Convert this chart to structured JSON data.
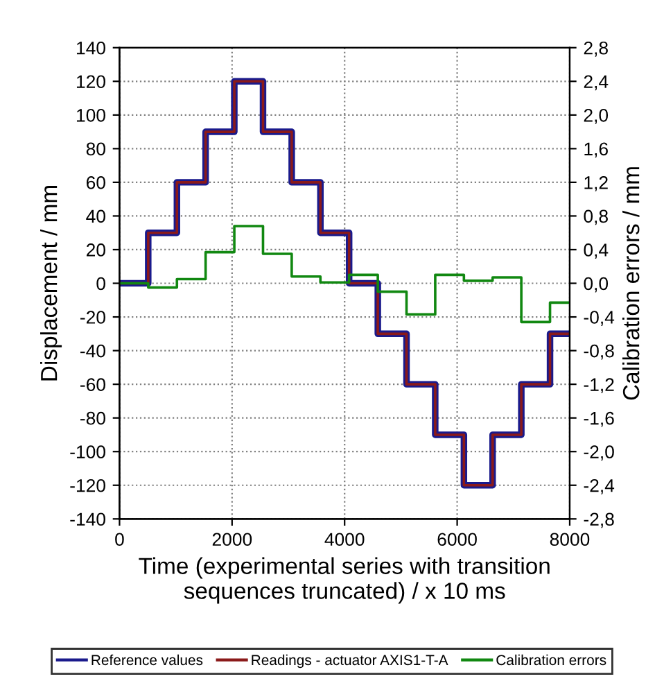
{
  "chart_data": {
    "type": "step",
    "xlabel": "Time (experimental series with transition\nsequences truncated) / x 10 ms",
    "ylabel": "Displacement / mm",
    "y2label": "Calibration errors / mm",
    "xlim": [
      0,
      8000
    ],
    "xticks": [
      0,
      2000,
      4000,
      6000,
      8000
    ],
    "ylim": [
      -140,
      140
    ],
    "yticks": [
      -140,
      -120,
      -100,
      -80,
      -60,
      -40,
      -20,
      0,
      20,
      40,
      60,
      80,
      100,
      120,
      140
    ],
    "y2lim": [
      -2.8,
      2.8
    ],
    "y2ticks": [
      {
        "value": -2.8,
        "label": "-2,8"
      },
      {
        "value": -2.4,
        "label": "-2,4"
      },
      {
        "value": -2.0,
        "label": "-2,0"
      },
      {
        "value": -1.6,
        "label": "-1,6"
      },
      {
        "value": -1.2,
        "label": "-1,2"
      },
      {
        "value": -0.8,
        "label": "-0,8"
      },
      {
        "value": -0.4,
        "label": "-0,4"
      },
      {
        "value": 0.0,
        "label": "0,0"
      },
      {
        "value": 0.4,
        "label": "0,4"
      },
      {
        "value": 0.8,
        "label": "0,8"
      },
      {
        "value": 1.2,
        "label": "1,2"
      },
      {
        "value": 1.6,
        "label": "1,6"
      },
      {
        "value": 2.0,
        "label": "2,0"
      },
      {
        "value": 2.4,
        "label": "2,4"
      },
      {
        "value": 2.8,
        "label": "2,8"
      }
    ],
    "x": [
      0,
      510,
      1020,
      1530,
      2040,
      2550,
      3060,
      3570,
      4080,
      4590,
      5100,
      5610,
      6120,
      6630,
      7140,
      7650,
      8000
    ],
    "series": [
      {
        "name": "Reference values",
        "color": "#1a1a8c",
        "values": [
          0,
          30,
          60,
          90,
          120,
          90,
          60,
          30,
          0,
          -30,
          -60,
          -90,
          -120,
          -90,
          -60,
          -30,
          -30
        ]
      },
      {
        "name": "Readings - actuator AXIS1-T-A",
        "color": "#8b1a1a",
        "values": [
          0,
          30,
          60,
          90,
          120,
          90,
          60,
          30,
          0,
          -30,
          -60,
          -90,
          -120,
          -90,
          -60,
          -30,
          -30
        ]
      },
      {
        "name": "Calibration errors",
        "color": "#118811",
        "axis": "y2",
        "values": [
          0.0,
          -0.05,
          0.05,
          0.37,
          0.68,
          0.35,
          0.08,
          0.01,
          0.1,
          -0.1,
          -0.37,
          0.1,
          0.03,
          0.07,
          -0.46,
          -0.23,
          -0.23
        ]
      }
    ],
    "grid": true,
    "legend": "bottom",
    "line_style": "solid",
    "marker": "none"
  }
}
